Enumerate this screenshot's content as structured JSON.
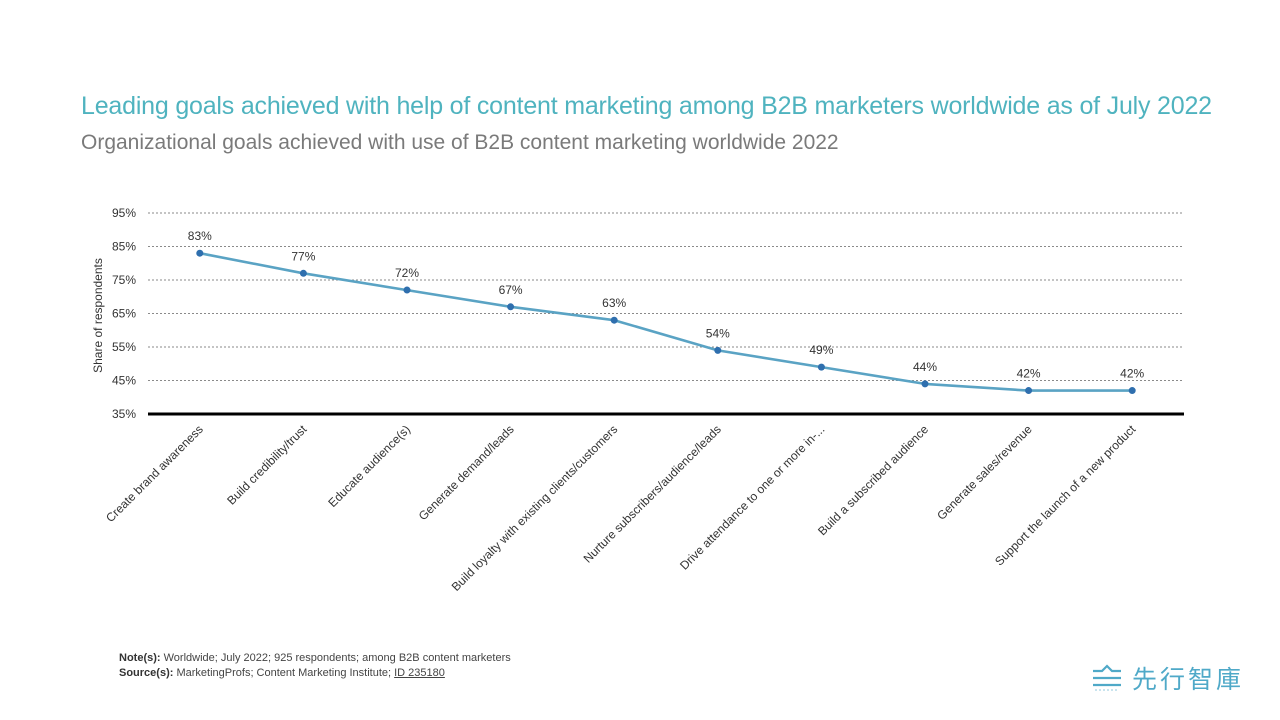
{
  "header": {
    "title": "Leading goals achieved with help of content marketing among B2B marketers worldwide  as of July 2022",
    "subtitle": "Organizational goals achieved with use of B2B content marketing worldwide 2022"
  },
  "chart_data": {
    "type": "line",
    "title": "Leading goals achieved with help of content marketing among B2B marketers worldwide  as of July 2022",
    "subtitle": "Organizational goals achieved with use of B2B content marketing worldwide 2022",
    "xlabel": "",
    "ylabel": "Share of respondents",
    "categories": [
      "Create brand awareness",
      "Build credibility/trust",
      "Educate audience(s)",
      "Generate demand/leads",
      "Build loyalty with existing clients/customers",
      "Nurture subscribers/audience/leads",
      "Drive attendance to one or more in-...",
      "Build a subscribed audience",
      "Generate sales/revenue",
      "Support the launch of a new product"
    ],
    "values": [
      83,
      77,
      72,
      67,
      63,
      54,
      49,
      44,
      42,
      42
    ],
    "data_labels": [
      "83%",
      "77%",
      "72%",
      "67%",
      "63%",
      "54%",
      "49%",
      "44%",
      "42%",
      "42%"
    ],
    "ylim": [
      35,
      95
    ],
    "yticks": [
      95,
      85,
      75,
      65,
      55,
      45,
      35
    ],
    "ytick_labels": [
      "95%",
      "85%",
      "75%",
      "65%",
      "55%",
      "45%",
      "35%"
    ],
    "grid": true,
    "legend": "none",
    "line_color": "#5aa3c4"
  },
  "footer": {
    "note_label": "Note(s):",
    "note_text": "Worldwide; July 2022; 925 respondents; among B2B content marketers",
    "source_label": "Source(s):",
    "source_text": "MarketingProfs; Content Marketing Institute; ",
    "source_id": "ID 235180"
  },
  "logo": {
    "text": "先行智庫",
    "color": "#4fa9c8"
  }
}
